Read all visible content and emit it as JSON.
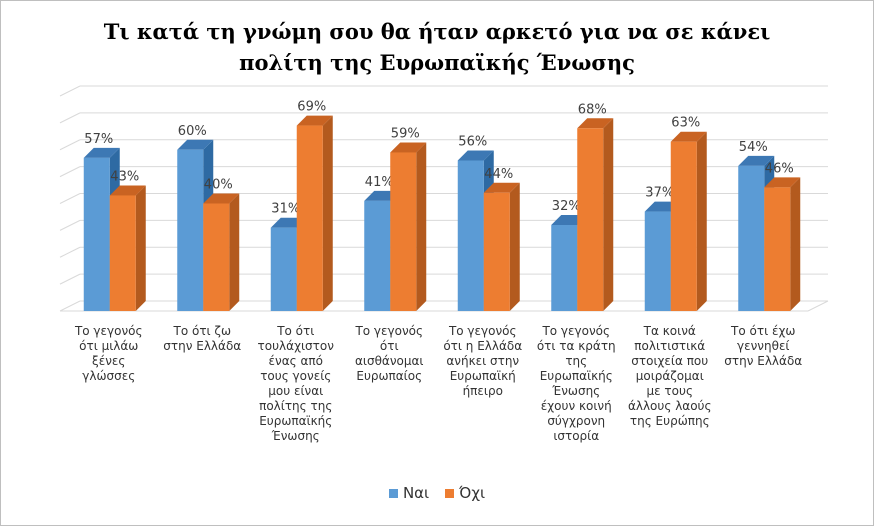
{
  "chart_data": {
    "type": "bar",
    "title_lines": [
      "Τι κατά τη γνώμη σου θα ήταν αρκετό για να σε κάνει",
      "πολίτη της Ευρωπαϊκής Ένωσης"
    ],
    "categories": [
      "Το γεγονός ότι μιλάω ξένες γλώσσες",
      "Το ότι ζω στην Ελλάδα",
      "Το ότι τουλάχιστον ένας από τους γονείς μου είναι πολίτης της Ευρωπαϊκής Ένωσης",
      "Το γεγονός ότι αισθάνομαι Ευρωπαίος",
      "Το γεγονός ότι η Ελλάδα ανήκει στην Ευρωπαϊκή ήπειρο",
      "Το γεγονός ότι τα κράτη της Ευρωπαϊκής Ένωσης έχουν κοινή σύγχρονη ιστορία",
      "Τα κοινά πολιτιστικά στοιχεία που μοιράζομαι με τους άλλους λαούς της Ευρώπης",
      "Το ότι έχω γεννηθεί στην Ελλάδα"
    ],
    "series": [
      {
        "name": "Ναι",
        "values": [
          57,
          60,
          31,
          41,
          56,
          32,
          37,
          54
        ],
        "labels": [
          "57%",
          "60%",
          "31%",
          "41%",
          "56%",
          "32%",
          "37%",
          "54%"
        ]
      },
      {
        "name": "Όχι",
        "values": [
          43,
          40,
          69,
          59,
          44,
          68,
          63,
          46
        ],
        "labels": [
          "43%",
          "40%",
          "69%",
          "59%",
          "44%",
          "68%",
          "63%",
          "46%"
        ]
      }
    ],
    "ylim": [
      0,
      80
    ],
    "grid": true,
    "legend_position": "bottom",
    "colors": {
      "series_0": "#5b9bd5",
      "series_0_side": "#2e6aa3",
      "series_0_top": "#3d78b4",
      "series_1": "#ed7d31",
      "series_1_side": "#b35a1e",
      "series_1_top": "#c96322",
      "grid": "#d9d9d9"
    }
  }
}
